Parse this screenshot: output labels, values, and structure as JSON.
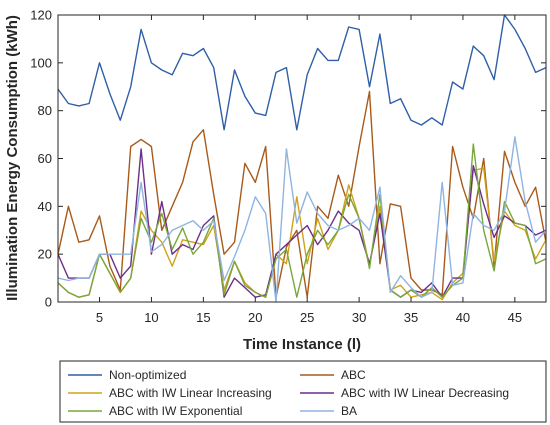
{
  "chart_data": {
    "type": "line",
    "title": "",
    "xlabel": "Time Instance (l)",
    "ylabel": "Illumination Energy Consumption (kWh)",
    "xlim": [
      1,
      48
    ],
    "ylim": [
      0,
      120
    ],
    "xticks": [
      5,
      10,
      15,
      20,
      25,
      30,
      35,
      40,
      45
    ],
    "yticks": [
      0,
      20,
      40,
      60,
      80,
      100,
      120
    ],
    "grid": false,
    "legend_position": "bottom-outside",
    "x": [
      1,
      2,
      3,
      4,
      5,
      6,
      7,
      8,
      9,
      10,
      11,
      12,
      13,
      14,
      15,
      16,
      17,
      18,
      19,
      20,
      21,
      22,
      23,
      24,
      25,
      26,
      27,
      28,
      29,
      30,
      31,
      32,
      33,
      34,
      35,
      36,
      37,
      38,
      39,
      40,
      41,
      42,
      43,
      44,
      45,
      46,
      47,
      48
    ],
    "series": [
      {
        "name": "Non-optimized",
        "color": "#2e5fa8",
        "values": [
          89,
          83,
          82,
          83,
          100,
          87,
          76,
          90,
          114,
          100,
          97,
          95,
          104,
          103,
          106,
          98,
          72,
          97,
          86,
          79,
          78,
          96,
          98,
          72,
          95,
          106,
          101,
          101,
          115,
          114,
          90,
          112,
          83,
          85,
          76,
          74,
          77,
          74,
          92,
          89,
          107,
          103,
          93,
          120,
          114,
          106,
          96,
          98
        ]
      },
      {
        "name": "ABC",
        "color": "#a85a1a",
        "values": [
          20,
          40,
          25,
          26,
          36,
          15,
          5,
          65,
          68,
          65,
          30,
          40,
          50,
          67,
          72,
          45,
          20,
          25,
          58,
          50,
          65,
          2,
          23,
          30,
          2,
          40,
          35,
          53,
          40,
          65,
          88,
          16,
          41,
          40,
          10,
          5,
          5,
          3,
          65,
          48,
          35,
          60,
          15,
          63,
          50,
          40,
          48,
          25
        ]
      },
      {
        "name": "ABC with IW Linear Increasing",
        "color": "#cfa21a",
        "values": [
          8,
          4,
          2,
          3,
          20,
          12,
          4,
          10,
          38,
          30,
          25,
          15,
          26,
          25,
          24,
          32,
          5,
          17,
          8,
          4,
          2,
          20,
          16,
          44,
          16,
          35,
          22,
          30,
          49,
          35,
          15,
          40,
          5,
          7,
          2,
          3,
          4,
          1,
          8,
          12,
          55,
          56,
          17,
          38,
          32,
          30,
          18,
          26
        ]
      },
      {
        "name": "ABC with IW Linear Decreasing",
        "color": "#6a2f8a",
        "values": [
          20,
          10,
          10,
          10,
          20,
          20,
          10,
          15,
          64,
          20,
          42,
          20,
          24,
          22,
          32,
          36,
          2,
          10,
          6,
          2,
          3,
          20,
          24,
          28,
          32,
          24,
          30,
          38,
          33,
          30,
          16,
          37,
          5,
          2,
          5,
          4,
          8,
          2,
          10,
          10,
          57,
          41,
          27,
          36,
          33,
          32,
          28,
          30
        ]
      },
      {
        "name": "ABC with IW Exponential",
        "color": "#7aa63c",
        "values": [
          8,
          4,
          2,
          3,
          20,
          12,
          4,
          10,
          35,
          25,
          37,
          22,
          31,
          20,
          25,
          35,
          3,
          17,
          7,
          4,
          2,
          18,
          22,
          2,
          20,
          30,
          24,
          30,
          45,
          35,
          14,
          45,
          5,
          2,
          5,
          2,
          6,
          2,
          7,
          10,
          66,
          30,
          13,
          42,
          33,
          32,
          16,
          18
        ]
      },
      {
        "name": "BA",
        "color": "#8fb4e0",
        "values": [
          10,
          9,
          10,
          10,
          20,
          20,
          20,
          20,
          50,
          21,
          24,
          30,
          32,
          34,
          30,
          34,
          9,
          19,
          30,
          44,
          37,
          0,
          64,
          33,
          46,
          37,
          32,
          30,
          32,
          35,
          30,
          48,
          4,
          11,
          6,
          2,
          4,
          50,
          7,
          8,
          37,
          32,
          30,
          38,
          69,
          42,
          25,
          30
        ]
      }
    ]
  }
}
